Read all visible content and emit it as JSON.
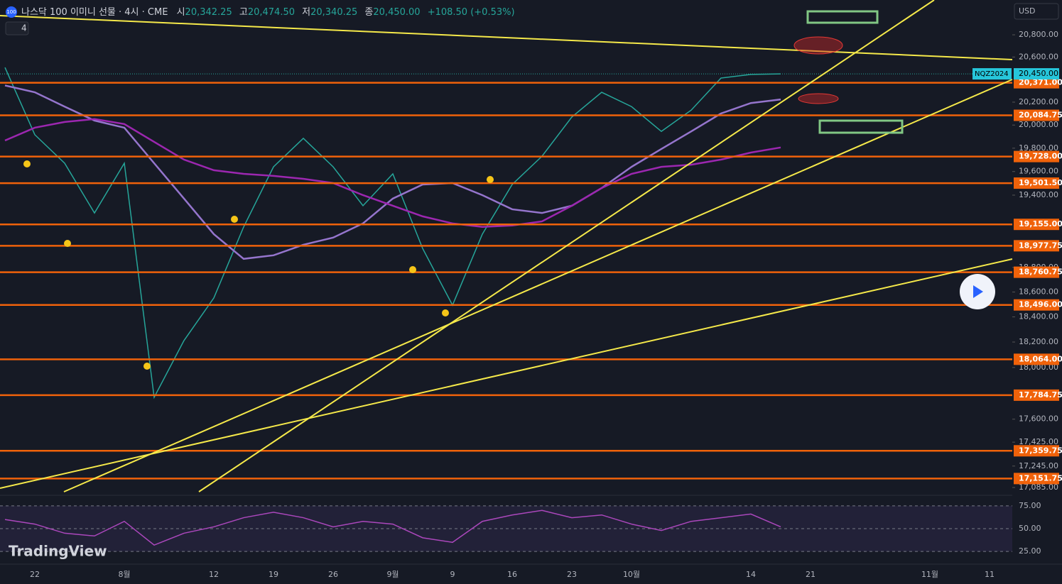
{
  "header": {
    "logo": "100",
    "title": "나스닥 100 이미니 선물 · 4시 · CME",
    "open_label": "시",
    "open": "20,342.25",
    "high_label": "고",
    "high": "20,474.50",
    "low_label": "저",
    "low": "20,340.25",
    "close_label": "종",
    "close": "20,450.00",
    "change": "+108.50 (+0.53%)",
    "indicators": "4",
    "currency": "USD",
    "brand": "TradingView"
  },
  "chart_data": [
    {
      "type": "line",
      "ylog": true,
      "categories": [
        null,
        "22",
        null,
        null,
        "8월",
        null,
        null,
        "12",
        null,
        "19",
        null,
        "26",
        null,
        "9월",
        null,
        "9",
        null,
        "16",
        null,
        "23",
        null,
        "10월",
        null,
        null,
        null,
        "14",
        null,
        "21",
        null,
        null,
        null,
        "11월",
        null,
        "11"
      ],
      "series": [
        {
          "color": "#26a69a",
          "values": [
            20507,
            19916,
            19671,
            19250,
            19671,
            17768,
            18212,
            18552,
            19134,
            19640,
            19885,
            19640,
            19311,
            19580,
            18955,
            18494,
            19074,
            19490,
            19731,
            20070,
            20287,
            20161,
            19945,
            20130,
            20413,
            20445,
            20450,
            null,
            null,
            null,
            null,
            null,
            null,
            null
          ]
        },
        {
          "color": "#9575cd",
          "values": [
            20347,
            20287,
            20161,
            20039,
            19977,
            19671,
            19371,
            19074,
            18870,
            18899,
            18986,
            19045,
            19163,
            19371,
            19490,
            19502,
            19400,
            19281,
            19250,
            19311,
            19460,
            19640,
            19793,
            19945,
            20101,
            20192,
            20224,
            null,
            null,
            null,
            null,
            null,
            null,
            null
          ]
        },
        {
          "color": "#9c27b0",
          "values": [
            19866,
            19977,
            20027,
            20052,
            20009,
            19854,
            19702,
            19611,
            19580,
            19563,
            19538,
            19502,
            19400,
            19311,
            19222,
            19163,
            19134,
            19146,
            19180,
            19311,
            19460,
            19580,
            19640,
            19658,
            19702,
            19762,
            19806,
            null,
            null,
            null,
            null,
            null,
            null,
            null
          ]
        }
      ],
      "ylim": [
        17043,
        21117
      ],
      "yticks": [
        {
          "value": 20800,
          "label": "20,800.00"
        },
        {
          "value": 20600,
          "label": "20,600.00"
        },
        {
          "value": 20200,
          "label": "20,200.00"
        },
        {
          "value": 20000,
          "label": "20,000.00"
        },
        {
          "value": 19800,
          "label": "19,800.00"
        },
        {
          "value": 19600,
          "label": "19,600.00"
        },
        {
          "value": 19400,
          "label": "19,400.00"
        },
        {
          "value": 18800,
          "label": "18,800.00"
        },
        {
          "value": 18600,
          "label": "18,600.00"
        },
        {
          "value": 18400,
          "label": "18,400.00"
        },
        {
          "value": 18200,
          "label": "18,200.00"
        },
        {
          "value": 18000,
          "label": "18,000.00"
        },
        {
          "value": 17600,
          "label": "17,600.00"
        },
        {
          "value": 17425,
          "label": "17,425.00"
        },
        {
          "value": 17245,
          "label": "17,245.00"
        },
        {
          "value": 17085,
          "label": "17,085.00"
        }
      ],
      "level_color": "#f0620a",
      "levels": [
        {
          "value": 20371,
          "label": "20,371.00"
        },
        {
          "value": 20084.75,
          "label": "20,084.75"
        },
        {
          "value": 19728,
          "label": "19,728.00"
        },
        {
          "value": 19501.5,
          "label": "19,501.50"
        },
        {
          "value": 19155,
          "label": "19,155.00"
        },
        {
          "value": 18977.75,
          "label": "18,977.75"
        },
        {
          "value": 18760.75,
          "label": "18,760.75"
        },
        {
          "value": 18496,
          "label": "18,496.00"
        },
        {
          "value": 18064,
          "label": "18,064.00"
        },
        {
          "value": 17784.75,
          "label": "17,784.75"
        },
        {
          "value": 17359.75,
          "label": "17,359.75"
        },
        {
          "value": 17151.75,
          "label": "17,151.75"
        }
      ],
      "last_price": {
        "value": 20450,
        "label": "20,450.00"
      },
      "symbol": "NQZ2024"
    },
    {
      "type": "line",
      "series": [
        {
          "color": "#ab47bc",
          "values": [
            60,
            55,
            45,
            42,
            58,
            32,
            45,
            52,
            62,
            68,
            62,
            52,
            58,
            55,
            40,
            35,
            58,
            65,
            70,
            62,
            65,
            55,
            48,
            58,
            62,
            66,
            52,
            null,
            null,
            null,
            null,
            null,
            null,
            null
          ]
        }
      ],
      "ylim": [
        15,
        85
      ],
      "yticks": [
        {
          "value": 75,
          "label": "75.00"
        },
        {
          "value": 50,
          "label": "50.00"
        },
        {
          "value": 25,
          "label": "25.00"
        }
      ]
    }
  ]
}
